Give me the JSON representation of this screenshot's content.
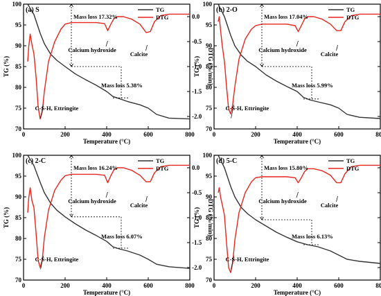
{
  "figure": {
    "xlabel": "Temperature (°C)",
    "ylabel_left": "TG (%)",
    "ylabel_right": "DTG (%/min)",
    "legend": [
      "TG",
      "DTG"
    ],
    "colors": {
      "tg": "#333333",
      "dtg": "#e8251e",
      "axis": "#000000"
    }
  },
  "chart_data": [
    {
      "type": "line",
      "panel": "(a) S",
      "x_ticks": [
        0,
        200,
        400,
        600,
        800
      ],
      "y_left_ticks": [
        70,
        75,
        80,
        85,
        90,
        95,
        100
      ],
      "y_right_ticks": [
        0.0,
        -0.5,
        -1.0,
        -1.5,
        -2.0
      ],
      "xlim": [
        0,
        800
      ],
      "ylim_left": [
        70,
        100
      ],
      "ylim_right": [
        -2.25,
        0.25
      ],
      "series": [
        {
          "name": "TG",
          "axis": "left",
          "x": [
            20,
            50,
            80,
            100,
            130,
            160,
            200,
            250,
            300,
            350,
            400,
            430,
            460,
            500,
            560,
            600,
            640,
            700,
            800
          ],
          "y": [
            100,
            97.5,
            93.0,
            90.5,
            88.0,
            86.5,
            85.0,
            83.2,
            81.8,
            80.5,
            79.0,
            77.8,
            77.3,
            76.6,
            75.8,
            75.0,
            73.5,
            72.6,
            72.4
          ]
        },
        {
          "name": "DTG",
          "axis": "right",
          "x": [
            20,
            25,
            32,
            40,
            50,
            60,
            70,
            80,
            90,
            100,
            120,
            150,
            180,
            200,
            230,
            260,
            300,
            350,
            390,
            405,
            420,
            435,
            450,
            480,
            520,
            560,
            590,
            610,
            630,
            660,
            700,
            750,
            800
          ],
          "y": [
            -0.9,
            -0.6,
            -0.35,
            -0.55,
            -0.75,
            -1.2,
            -1.8,
            -2.05,
            -1.9,
            -1.5,
            -0.9,
            -0.5,
            -0.25,
            -0.15,
            -0.12,
            -0.12,
            -0.12,
            -0.12,
            -0.14,
            -0.28,
            -0.15,
            -0.04,
            0.0,
            0.0,
            -0.05,
            -0.15,
            -0.32,
            -0.3,
            -0.1,
            0.02,
            0.05,
            0.05,
            0.05
          ]
        }
      ],
      "annotations": {
        "mass_loss_top": "Mass loss 17.32%",
        "mass_loss_bottom": "Mass loss 5.38%",
        "calcium_hydroxide": "Calcium hydroxide",
        "calcite": "Calcite",
        "csh": "C-S-H, Ettringite"
      }
    },
    {
      "type": "line",
      "panel": "(b) 2-O",
      "x_ticks": [
        0,
        200,
        400,
        600,
        800
      ],
      "y_left_ticks": [
        70,
        75,
        80,
        85,
        90,
        95,
        100
      ],
      "y_right_ticks": [
        0.0,
        -0.5,
        -1.0,
        -1.5,
        -2.0
      ],
      "xlim": [
        0,
        800
      ],
      "ylim_left": [
        70,
        100
      ],
      "ylim_right": [
        -2.25,
        0.25
      ],
      "series": [
        {
          "name": "TG",
          "axis": "left",
          "x": [
            20,
            50,
            80,
            100,
            130,
            160,
            200,
            250,
            300,
            350,
            400,
            430,
            460,
            500,
            560,
            600,
            640,
            700,
            800
          ],
          "y": [
            100,
            97.0,
            92.5,
            90.0,
            87.8,
            86.3,
            85.0,
            83.0,
            81.5,
            80.2,
            79.0,
            77.6,
            77.0,
            76.5,
            75.8,
            75.0,
            73.5,
            72.8,
            72.5
          ]
        },
        {
          "name": "DTG",
          "axis": "right",
          "x": [
            20,
            25,
            32,
            40,
            50,
            60,
            70,
            80,
            90,
            100,
            120,
            150,
            180,
            200,
            230,
            260,
            300,
            350,
            390,
            405,
            420,
            435,
            450,
            480,
            520,
            560,
            590,
            610,
            630,
            660,
            700,
            750,
            800
          ],
          "y": [
            -0.1,
            0.0,
            -0.3,
            -0.6,
            -0.9,
            -1.4,
            -1.85,
            -1.95,
            -1.75,
            -1.4,
            -0.85,
            -0.45,
            -0.25,
            -0.18,
            -0.15,
            -0.15,
            -0.15,
            -0.15,
            -0.18,
            -0.3,
            -0.18,
            -0.05,
            0.0,
            0.0,
            -0.05,
            -0.15,
            -0.28,
            -0.28,
            -0.1,
            0.02,
            0.05,
            0.05,
            0.05
          ]
        }
      ],
      "annotations": {
        "mass_loss_top": "Mass loss 17.04%",
        "mass_loss_bottom": "Mass loss 5.99%",
        "calcium_hydroxide": "Calcium hydroxide",
        "calcite": "Calcite",
        "csh": "C-S-H, Ettringite"
      }
    },
    {
      "type": "line",
      "panel": "(c) 2-C",
      "x_ticks": [
        0,
        200,
        400,
        600,
        800
      ],
      "y_left_ticks": [
        70,
        75,
        80,
        85,
        90,
        95,
        100
      ],
      "y_right_ticks": [
        0.0,
        -0.5,
        -1.0,
        -1.5,
        -2.0
      ],
      "xlim": [
        0,
        800
      ],
      "ylim_left": [
        70,
        100
      ],
      "ylim_right": [
        -2.25,
        0.25
      ],
      "series": [
        {
          "name": "TG",
          "axis": "left",
          "x": [
            20,
            50,
            80,
            100,
            130,
            160,
            200,
            250,
            300,
            350,
            400,
            430,
            460,
            500,
            560,
            600,
            640,
            700,
            800
          ],
          "y": [
            100,
            97.5,
            93.5,
            91.0,
            88.5,
            86.8,
            85.2,
            83.5,
            82.0,
            80.7,
            79.3,
            78.0,
            77.5,
            77.0,
            76.0,
            75.0,
            73.8,
            73.2,
            72.8
          ]
        },
        {
          "name": "DTG",
          "axis": "right",
          "x": [
            20,
            25,
            32,
            40,
            50,
            60,
            70,
            80,
            90,
            100,
            120,
            150,
            180,
            200,
            230,
            260,
            300,
            350,
            390,
            405,
            420,
            435,
            450,
            480,
            520,
            560,
            590,
            610,
            630,
            660,
            700,
            750,
            800
          ],
          "y": [
            -0.9,
            -0.6,
            -0.4,
            -0.65,
            -0.8,
            -1.3,
            -1.85,
            -2.0,
            -1.85,
            -1.4,
            -0.85,
            -0.45,
            -0.25,
            -0.16,
            -0.13,
            -0.13,
            -0.13,
            -0.13,
            -0.15,
            -0.3,
            -0.16,
            -0.04,
            0.0,
            0.0,
            -0.05,
            -0.15,
            -0.28,
            -0.28,
            -0.1,
            0.02,
            0.05,
            0.05,
            0.05
          ]
        }
      ],
      "annotations": {
        "mass_loss_top": "Mass loss 16.24%",
        "mass_loss_bottom": "Mass loss 6.07%",
        "calcium_hydroxide": "Calcium hydroxide",
        "calcite": "Calcite",
        "csh": "C-S-H, Ettringite"
      }
    },
    {
      "type": "line",
      "panel": "(d) 5-C",
      "x_ticks": [
        0,
        200,
        400,
        600,
        800
      ],
      "y_left_ticks": [
        70,
        75,
        80,
        85,
        90,
        95,
        100
      ],
      "y_right_ticks": [
        0.0,
        -0.5,
        -1.0,
        -1.5,
        -2.0
      ],
      "xlim": [
        0,
        800
      ],
      "ylim_left": [
        70,
        100
      ],
      "ylim_right": [
        -2.25,
        0.25
      ],
      "series": [
        {
          "name": "TG",
          "axis": "left",
          "x": [
            20,
            50,
            80,
            100,
            130,
            160,
            200,
            250,
            300,
            350,
            400,
            450,
            500,
            560,
            600,
            640,
            700,
            800
          ],
          "y": [
            100,
            97.0,
            92.5,
            90.0,
            87.5,
            86.0,
            84.5,
            83.0,
            81.5,
            80.3,
            79.2,
            78.5,
            78.0,
            77.0,
            76.0,
            75.0,
            74.5,
            74.0
          ]
        },
        {
          "name": "DTG",
          "axis": "right",
          "x": [
            20,
            25,
            32,
            40,
            50,
            60,
            70,
            80,
            90,
            100,
            120,
            150,
            180,
            200,
            230,
            260,
            300,
            350,
            390,
            405,
            420,
            435,
            450,
            480,
            520,
            560,
            590,
            610,
            630,
            660,
            700,
            750,
            800
          ],
          "y": [
            -0.5,
            -0.4,
            -0.6,
            -0.75,
            -0.95,
            -1.5,
            -2.0,
            -2.1,
            -1.9,
            -1.45,
            -0.9,
            -0.5,
            -0.28,
            -0.2,
            -0.18,
            -0.18,
            -0.18,
            -0.18,
            -0.2,
            -0.3,
            -0.2,
            -0.08,
            -0.02,
            -0.02,
            -0.06,
            -0.15,
            -0.3,
            -0.3,
            -0.12,
            0.02,
            0.05,
            0.05,
            0.05
          ]
        }
      ],
      "annotations": {
        "mass_loss_top": "Mass loss 15.80%",
        "mass_loss_bottom": "Mass loss 6.13%",
        "calcium_hydroxide": "Calcium hydroxide",
        "calcite": "Calcite",
        "csh": "C-S-H, Ettringite"
      }
    }
  ]
}
